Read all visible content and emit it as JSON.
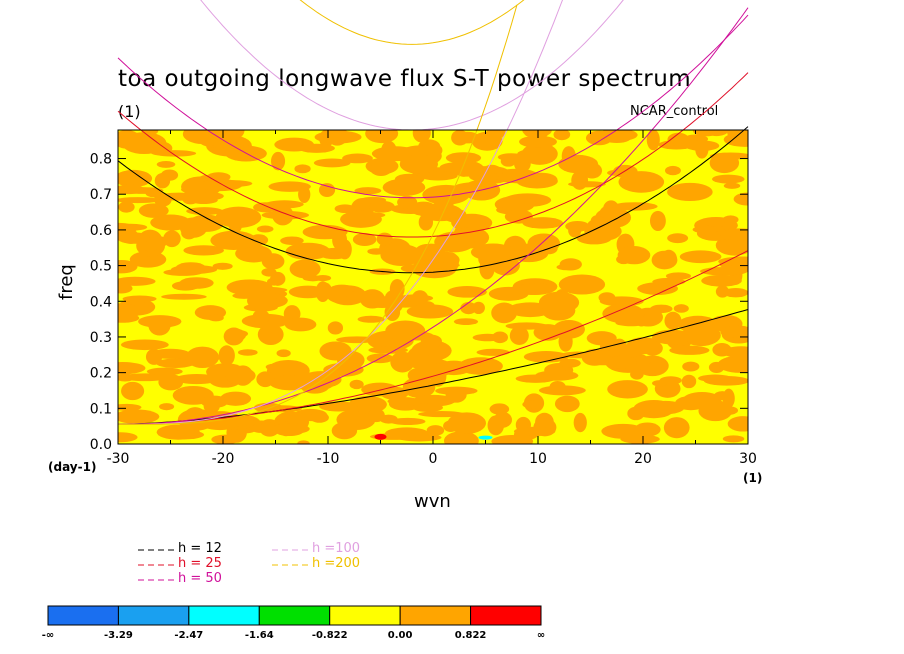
{
  "title": "toa outgoing longwave flux S-T power spectrum",
  "subtitle": "(1)",
  "run_label": "NCAR_control",
  "xlabel": "wvn",
  "ylabel": "freq",
  "yunit": "(day-1)",
  "xunit": "(1)",
  "chart_data": {
    "type": "heatmap",
    "title": "toa outgoing longwave flux S-T power spectrum",
    "xlabel": "wvn",
    "ylabel": "freq",
    "xlim": [
      -30,
      30
    ],
    "ylim": [
      0,
      0.88
    ],
    "x_ticks": [
      -30,
      -20,
      -10,
      0,
      10,
      20,
      30
    ],
    "x_tick_labels": [
      "-30",
      "-20",
      "-10",
      "0",
      "10",
      "20",
      "30"
    ],
    "y_ticks": [
      0.0,
      0.1,
      0.2,
      0.3,
      0.4,
      0.5,
      0.6,
      0.7,
      0.8
    ],
    "y_tick_labels": [
      "0.0",
      "0.1",
      "0.2",
      "0.3",
      "0.4",
      "0.5",
      "0.6",
      "0.7",
      "0.8"
    ],
    "field_levels": [
      "0.00",
      "0.822"
    ],
    "dispersion_curves": [
      {
        "name": "h = 12",
        "color": "#000000"
      },
      {
        "name": "h = 25",
        "color": "#e0102a"
      },
      {
        "name": "h = 50",
        "color": "#d0109a"
      },
      {
        "name": "h =100",
        "color": "#e0a0e0"
      },
      {
        "name": "h =200",
        "color": "#f0c000"
      }
    ],
    "colorbar": {
      "colors": [
        "#1a6ff0",
        "#1aa0f0",
        "#00ffff",
        "#00e000",
        "#ffff00",
        "#ffa500",
        "#ff0000"
      ],
      "labels": [
        "-∞",
        "-3.29",
        "-2.47",
        "-1.64",
        "-0.822",
        "0.00",
        "0.822",
        "∞"
      ]
    }
  }
}
